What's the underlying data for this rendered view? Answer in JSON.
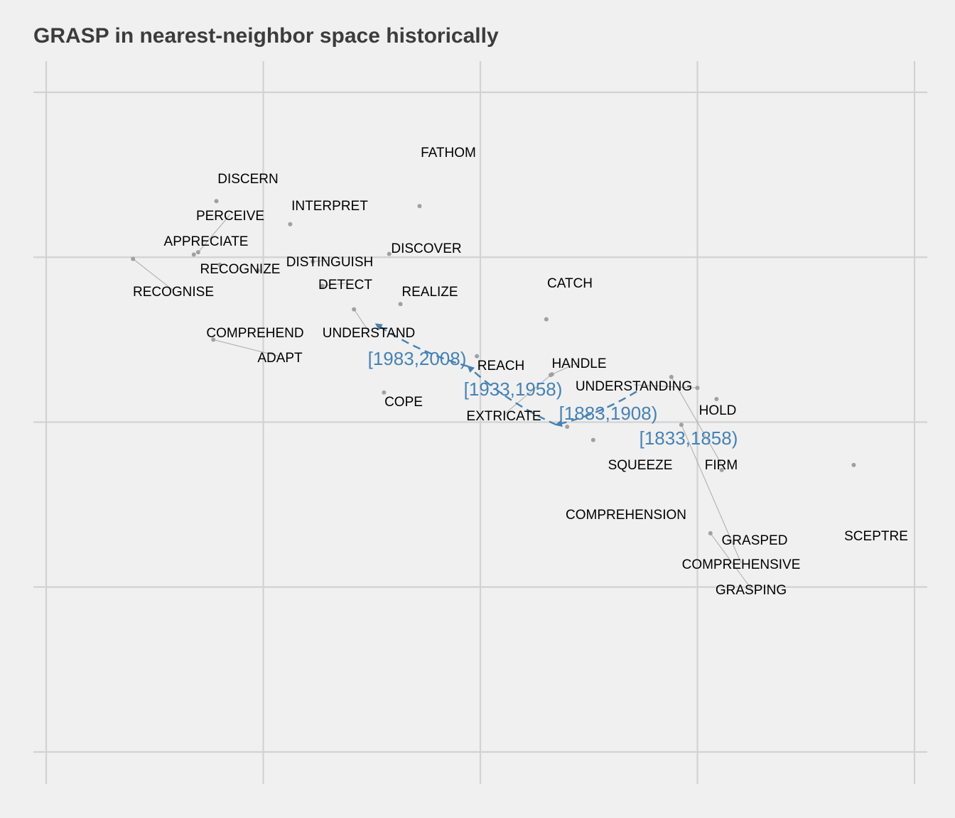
{
  "title": "GRASP in nearest-neighbor space historically",
  "colors": {
    "background": "#f0f0f0",
    "grid": "#d2d2d2",
    "point": "#a0a0a0",
    "label": "#000000",
    "leader": "#aaaaaa",
    "trajectory": "#4682b4"
  },
  "chart_data": {
    "type": "scatter",
    "title": "GRASP in nearest-neighbor space historically",
    "xlabel": "",
    "ylabel": "",
    "grid": true,
    "axis_ticks_shown": false,
    "xlim": [
      -1.0,
      1.0
    ],
    "ylim": [
      -1.0,
      1.0
    ],
    "grid_x": [
      -1.0,
      -0.5,
      0.0,
      0.5,
      1.0
    ],
    "grid_y": [
      -1.0,
      -0.5,
      0.0,
      0.5,
      1.0
    ],
    "neighbors": [
      {
        "label": "FATHOM",
        "x": -0.14,
        "y": 0.655
      },
      {
        "label": "DISCERN",
        "x": -0.608,
        "y": 0.67
      },
      {
        "label": "INTERPRET",
        "x": -0.438,
        "y": 0.6
      },
      {
        "label": "PERCEIVE",
        "x": -0.65,
        "y": 0.515
      },
      {
        "label": "DISCOVER",
        "x": -0.21,
        "y": 0.51
      },
      {
        "label": "APPRECIATE",
        "x": -0.66,
        "y": 0.508
      },
      {
        "label": "DISTINGUISH",
        "x": -0.386,
        "y": 0.487
      },
      {
        "label": "RECOGNIZE",
        "x": -0.6,
        "y": 0.477
      },
      {
        "label": "RECOGNISE",
        "x": -0.8,
        "y": 0.495
      },
      {
        "label": "DETECT",
        "x": -0.364,
        "y": 0.413
      },
      {
        "label": "REALIZE",
        "x": -0.184,
        "y": 0.358
      },
      {
        "label": "CATCH",
        "x": 0.152,
        "y": 0.312
      },
      {
        "label": "COMPREHEND",
        "x": -0.513,
        "y": 0.46
      },
      {
        "label": "ADAPT",
        "x": -0.615,
        "y": 0.25
      },
      {
        "label": "UNDERSTAND",
        "x": -0.291,
        "y": 0.342
      },
      {
        "label": "REACH",
        "x": -0.008,
        "y": 0.2
      },
      {
        "label": "HANDLE",
        "x": 0.165,
        "y": 0.145
      },
      {
        "label": "COPE",
        "x": -0.222,
        "y": 0.09
      },
      {
        "label": "EXTRICATE",
        "x": 0.162,
        "y": 0.143
      },
      {
        "label": "UNDERSTANDING",
        "x": 0.5,
        "y": 0.104
      },
      {
        "label": "HOLD",
        "x": 0.544,
        "y": 0.07
      },
      {
        "label": "FIRM",
        "x": 0.44,
        "y": 0.137
      },
      {
        "label": "SQUEEZE",
        "x": 0.26,
        "y": -0.054
      },
      {
        "label": "COMPREHENSION",
        "x": 0.2,
        "y": -0.014
      },
      {
        "label": "GRASPED",
        "x": 0.556,
        "y": -0.145
      },
      {
        "label": "SCEPTRE",
        "x": 0.86,
        "y": -0.13
      },
      {
        "label": "COMPREHENSIVE",
        "x": 0.463,
        "y": -0.008
      },
      {
        "label": "GRASPING",
        "x": 0.53,
        "y": -0.337
      }
    ],
    "trajectory": [
      {
        "label": "[1833,1858)",
        "x": 0.36,
        "y": 0.093
      },
      {
        "label": "[1883,1908)",
        "x": 0.175,
        "y": -0.008
      },
      {
        "label": "[1933,1958)",
        "x": -0.028,
        "y": 0.169
      },
      {
        "label": "[1983,2008)",
        "x": -0.24,
        "y": 0.297
      }
    ]
  }
}
